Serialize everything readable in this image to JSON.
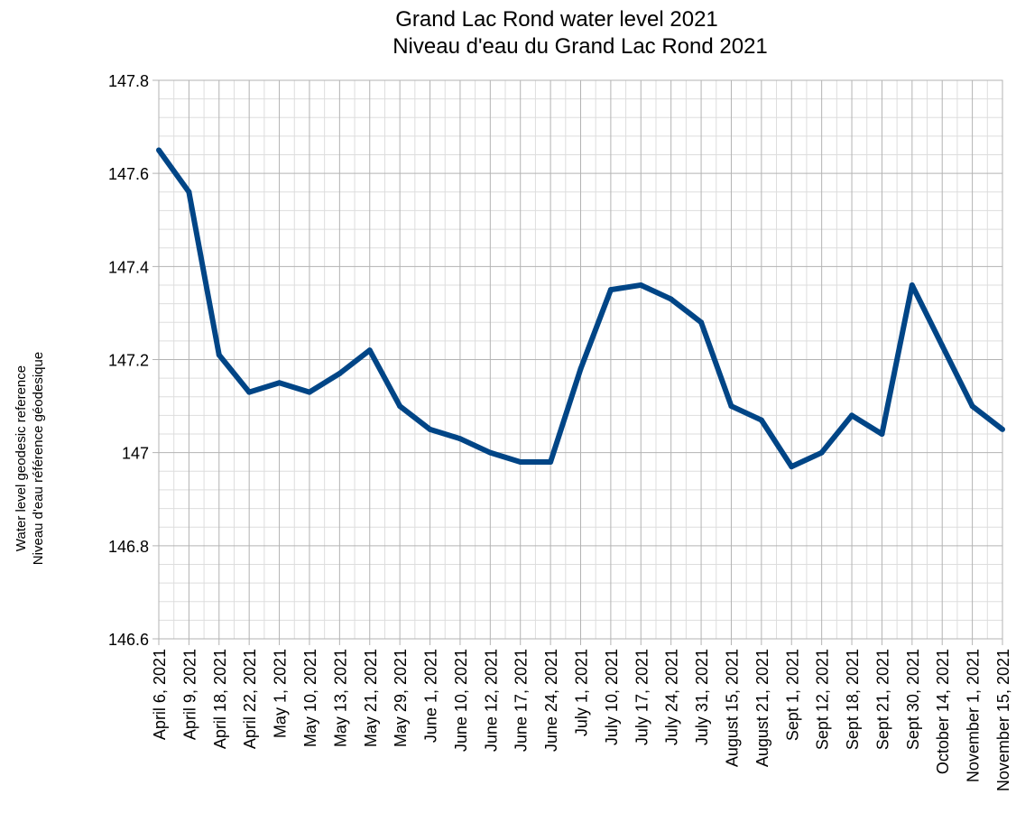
{
  "chart_data": {
    "type": "line",
    "title": [
      "Grand Lac Rond water level 2021",
      "Niveau d'eau du Grand Lac Rond 2021"
    ],
    "ylabel": [
      "Water level geodesic reference",
      "Niveau d'eau référence géodesique"
    ],
    "xlabel": "",
    "categories": [
      "April 6, 2021",
      "April 9, 2021",
      "April 18, 2021",
      "April 22, 2021",
      "May 1, 2021",
      "May 10, 2021",
      "May 13, 2021",
      "May 21, 2021",
      "May 29, 2021",
      "June 1, 2021",
      "June 10, 2021",
      "June 12, 2021",
      "June 17, 2021",
      "June 24, 2021",
      "July 1, 2021",
      "July 10, 2021",
      "July 17, 2021",
      "July 24, 2021",
      "July 31, 2021",
      "August 15, 2021",
      "August 21, 2021",
      "Sept 1, 2021",
      "Sept 12, 2021",
      "Sept 18, 2021",
      "Sept 21, 2021",
      "Sept 30, 2021",
      "October 14, 2021",
      "November 1, 2021",
      "November 15, 2021"
    ],
    "series": [
      {
        "values": [
          147.65,
          147.56,
          147.21,
          147.13,
          147.15,
          147.13,
          147.17,
          147.22,
          147.1,
          147.05,
          147.03,
          147.0,
          146.98,
          146.98,
          147.18,
          147.35,
          147.36,
          147.33,
          147.28,
          147.1,
          147.07,
          146.97,
          147.0,
          147.08,
          147.04,
          147.36,
          147.23,
          147.1,
          147.05
        ],
        "color": "#004586"
      }
    ],
    "ylim": [
      146.6,
      147.8
    ],
    "yticks": [
      146.6,
      146.8,
      147,
      147.2,
      147.4,
      147.6,
      147.8
    ],
    "ytick_labels": [
      "146.6",
      "146.8",
      "147",
      "147.2",
      "147.4",
      "147.6",
      "147.8"
    ],
    "grid": true,
    "legend": "none",
    "colors": {
      "line": "#004586",
      "major_grid": "#b3b3b3",
      "minor_grid": "#dddddd",
      "axis": "#b3b3b3"
    }
  }
}
